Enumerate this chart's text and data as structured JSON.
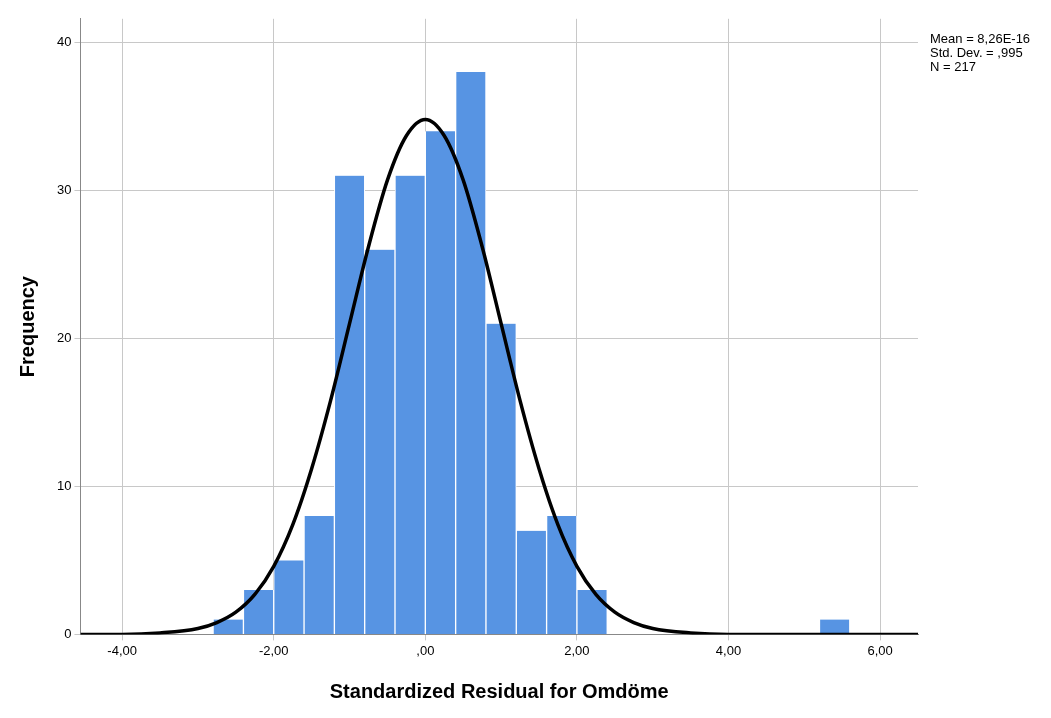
{
  "chart_data": {
    "type": "histogram",
    "xlabel": "Standardized Residual for Omdöme",
    "ylabel": "Frequency",
    "bins": [
      -2.8,
      -2.4,
      -2.0,
      -1.6,
      -1.2,
      -0.8,
      -0.4,
      0,
      0.4,
      0.8,
      1.2,
      1.6,
      2.0,
      2.4,
      2.8,
      3.2,
      3.6,
      4.0,
      4.4,
      4.8,
      5.2,
      5.6
    ],
    "values": [
      1,
      3,
      5,
      8,
      31,
      26,
      31,
      34,
      38,
      21,
      7,
      8,
      3,
      0,
      0,
      0,
      0,
      0,
      0,
      0,
      1
    ],
    "color": "#5794e3",
    "series": [
      {
        "type": "line",
        "color": "#000000",
        "marker": "none",
        "x": [
          -4.55,
          -4,
          -3.5,
          -3,
          -2.75,
          -2.5,
          -2.25,
          -2,
          -1.75,
          -1.5,
          -1.25,
          -1,
          -0.75,
          -0.5,
          -0.25,
          0,
          0.25,
          0.5,
          0.75,
          1,
          1.25,
          1.5,
          1.75,
          2,
          2.25,
          2.5,
          2.75,
          3,
          3.5,
          4,
          5,
          6.5
        ],
        "values": [
          0,
          0,
          0.1,
          0.4,
          0.8,
          1.5,
          2.7,
          4.6,
          7.4,
          11.2,
          15.8,
          21,
          26.2,
          30.7,
          33.7,
          34.8,
          33.7,
          30.7,
          26.2,
          21,
          15.8,
          11.2,
          7.4,
          4.6,
          2.7,
          1.5,
          0.8,
          0.4,
          0.1,
          0,
          0,
          0
        ]
      }
    ],
    "xlim": [
      -4.55,
      6.5
    ],
    "ylim": [
      0,
      41.6
    ],
    "xticks": [
      {
        "value": -4,
        "label": "-4,00"
      },
      {
        "value": -2,
        "label": "-2,00"
      },
      {
        "value": 0,
        "label": ",00"
      },
      {
        "value": 2,
        "label": "2,00"
      },
      {
        "value": 4,
        "label": "4,00"
      },
      {
        "value": 6,
        "label": "6,00"
      }
    ],
    "yticks": [
      0,
      10,
      20,
      30,
      40
    ],
    "grid": true,
    "legend": false,
    "annotations": [
      "Mean = 8,26E-16",
      "Std. Dev. = ,995",
      "N = 217"
    ]
  }
}
